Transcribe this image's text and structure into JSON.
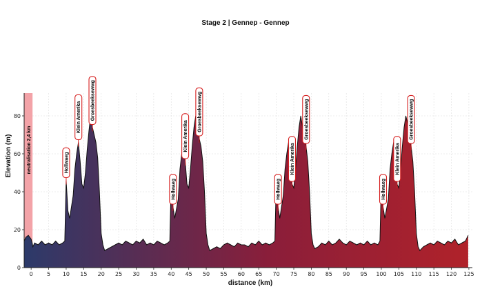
{
  "chart_data": {
    "type": "area",
    "title": "Stage 2 | Gennep - Gennep",
    "xlabel": "distance (km)",
    "ylabel": "Elevation (m)",
    "xlim": [
      -2,
      126
    ],
    "ylim": [
      0,
      92
    ],
    "xticks": [
      0,
      5,
      10,
      15,
      20,
      25,
      30,
      35,
      40,
      45,
      50,
      55,
      60,
      65,
      70,
      75,
      80,
      85,
      90,
      95,
      100,
      105,
      110,
      115,
      120,
      125
    ],
    "yticks": [
      0,
      20,
      40,
      60,
      80
    ],
    "grid": true,
    "gradient_colors": [
      "#2c3a6a",
      "#8a1e3a",
      "#b0222a"
    ],
    "neutral_zone": {
      "label": "neutralisation 2,4 km",
      "x": [
        -2,
        0.4
      ],
      "color": "#f3a3a8"
    },
    "climbs": [
      {
        "name": "Hollwaeg",
        "x": 10
      },
      {
        "name": "Klein Amerika",
        "x": 13.5
      },
      {
        "name": "Groesbeeksewwg",
        "x": 17.5
      },
      {
        "name": "Hollwaeg",
        "x": 40.5
      },
      {
        "name": "Klein Amerika",
        "x": 44
      },
      {
        "name": "Groesbeeksewwg",
        "x": 48
      },
      {
        "name": "Hollwaeg",
        "x": 70.5
      },
      {
        "name": "Klein Amerika",
        "x": 74.5
      },
      {
        "name": "Groesbeeksewwg",
        "x": 78.5
      },
      {
        "name": "Hollwaeg",
        "x": 100.5
      },
      {
        "name": "Klein Amerika",
        "x": 104.5
      },
      {
        "name": "Groesbeeksewwg",
        "x": 108.5
      }
    ],
    "series": [
      {
        "x": [
          -2,
          -1.5,
          -0.8,
          0,
          0.3,
          0.5,
          1,
          2,
          3,
          4,
          5,
          6,
          7,
          8,
          9,
          9.6,
          10,
          10.5,
          11,
          12,
          12.5,
          13,
          13.5,
          14,
          14.5,
          15,
          15.5,
          16,
          16.5,
          17,
          17.5,
          18,
          18.5,
          19,
          19.5,
          20,
          20.5,
          21,
          22,
          23,
          24,
          25,
          26,
          27,
          28,
          29,
          30,
          31,
          32,
          33,
          34,
          35,
          36,
          37,
          38,
          39,
          39.6,
          40,
          40.5,
          41,
          42,
          42.5,
          43,
          43.5,
          44,
          44.5,
          45,
          45.5,
          46,
          46.5,
          47,
          47.5,
          48,
          48.5,
          49,
          49.5,
          50,
          50.5,
          51,
          52,
          53,
          54,
          55,
          56,
          57,
          58,
          59,
          60,
          61,
          62,
          63,
          64,
          65,
          66,
          67,
          68,
          69,
          69.6,
          70,
          70.5,
          71,
          72,
          72.5,
          73,
          73.5,
          74,
          74.5,
          75,
          75.5,
          76,
          76.5,
          77,
          77.5,
          78,
          78.5,
          79,
          79.5,
          80,
          80.5,
          81,
          82,
          83,
          84,
          85,
          86,
          87,
          88,
          89,
          90,
          91,
          92,
          93,
          94,
          95,
          96,
          97,
          98,
          99,
          99.6,
          100,
          100.5,
          101,
          102,
          102.5,
          103,
          103.5,
          104,
          104.5,
          105,
          105.5,
          106,
          106.5,
          107,
          107.5,
          108,
          108.5,
          109,
          109.5,
          110,
          110.5,
          111,
          112,
          113,
          114,
          115,
          116,
          117,
          118,
          119,
          120,
          121,
          122,
          123,
          124,
          124.8
        ],
        "values": [
          14,
          16,
          17,
          15,
          13,
          11,
          13,
          12,
          14,
          12,
          13,
          12,
          14,
          12,
          13,
          14,
          46,
          30,
          26,
          38,
          52,
          60,
          66,
          56,
          44,
          42,
          50,
          62,
          72,
          80,
          74,
          70,
          66,
          58,
          40,
          18,
          12,
          9,
          10,
          11,
          12,
          13,
          12,
          14,
          13,
          12,
          14,
          13,
          15,
          12,
          13,
          12,
          14,
          13,
          12,
          13,
          14,
          46,
          32,
          26,
          36,
          52,
          60,
          66,
          56,
          44,
          42,
          52,
          64,
          74,
          80,
          74,
          68,
          64,
          56,
          40,
          18,
          12,
          9,
          10,
          11,
          10,
          12,
          13,
          12,
          11,
          13,
          12,
          12,
          11,
          13,
          12,
          14,
          12,
          13,
          12,
          13,
          14,
          46,
          32,
          26,
          38,
          52,
          60,
          66,
          56,
          44,
          42,
          52,
          64,
          74,
          80,
          74,
          68,
          64,
          56,
          40,
          18,
          12,
          10,
          11,
          13,
          12,
          14,
          12,
          13,
          15,
          13,
          12,
          14,
          13,
          12,
          13,
          12,
          14,
          12,
          13,
          12,
          14,
          46,
          32,
          26,
          36,
          52,
          60,
          66,
          56,
          44,
          42,
          52,
          64,
          74,
          80,
          76,
          70,
          64,
          56,
          40,
          18,
          11,
          9,
          11,
          12,
          13,
          12,
          14,
          13,
          12,
          14,
          13,
          15,
          12,
          13,
          14,
          17
        ]
      }
    ]
  }
}
